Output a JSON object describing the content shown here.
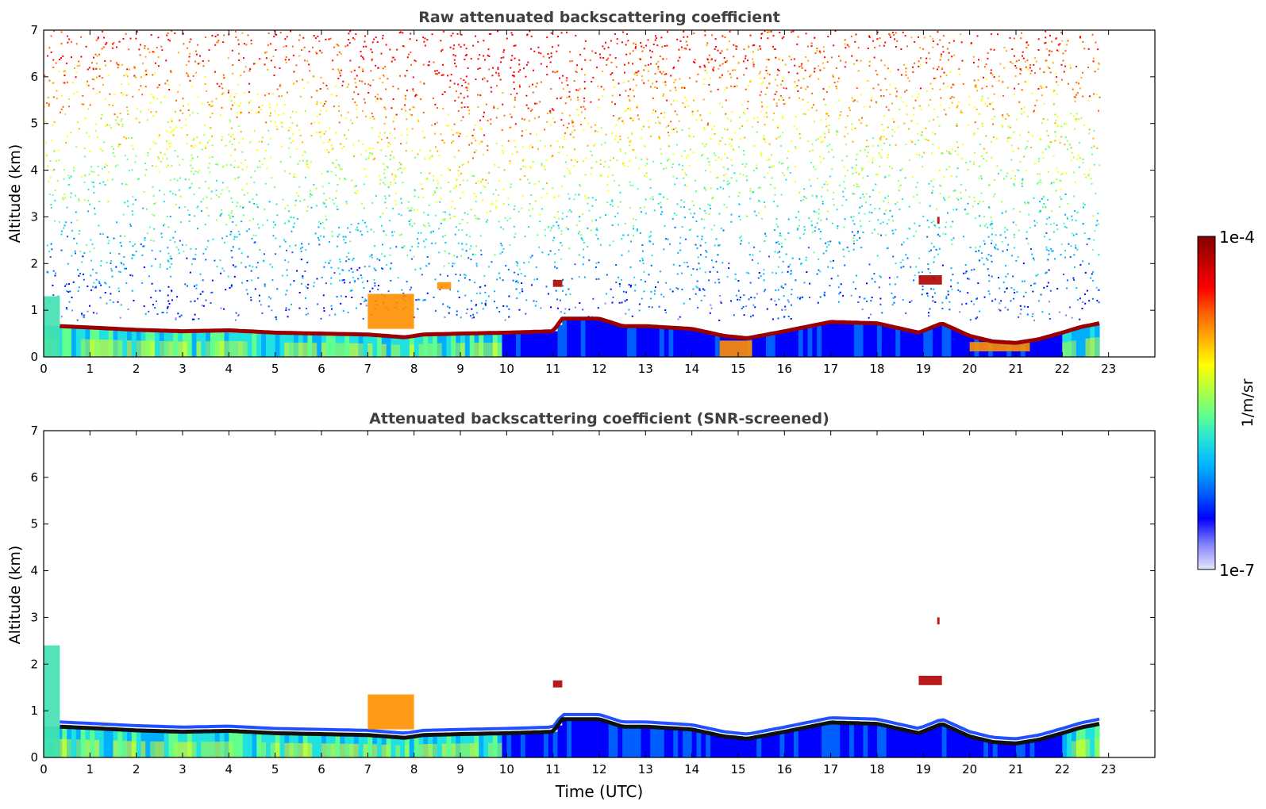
{
  "chart_data": [
    {
      "type": "heatmap",
      "title": "Raw attenuated backscattering coefficient",
      "xlabel": "",
      "ylabel": "Altitude (km)",
      "xlim": [
        0,
        24
      ],
      "ylim": [
        0,
        7
      ],
      "xticks": [
        "0",
        "1",
        "2",
        "3",
        "4",
        "5",
        "6",
        "7",
        "8",
        "9",
        "10",
        "11",
        "12",
        "13",
        "14",
        "15",
        "16",
        "17",
        "18",
        "19",
        "20",
        "21",
        "22",
        "23"
      ],
      "yticks": [
        "0",
        "1",
        "2",
        "3",
        "4",
        "5",
        "6",
        "7"
      ],
      "data_end_time": 22.8,
      "screened": false,
      "cloud_layer": {
        "x": [
          0.35,
          1,
          2,
          3,
          4,
          5,
          6,
          7,
          7.8,
          8.2,
          9,
          10,
          11,
          11.2,
          12,
          12.5,
          13,
          14,
          14.7,
          15.2,
          16,
          17,
          18,
          18.9,
          19.4,
          20,
          20.5,
          21,
          21.5,
          22,
          22.4,
          22.8
        ],
        "y": [
          0.66,
          0.63,
          0.58,
          0.55,
          0.57,
          0.52,
          0.5,
          0.48,
          0.42,
          0.48,
          0.5,
          0.52,
          0.55,
          0.82,
          0.82,
          0.66,
          0.66,
          0.6,
          0.45,
          0.4,
          0.55,
          0.75,
          0.72,
          0.52,
          0.72,
          0.45,
          0.33,
          0.3,
          0.38,
          0.52,
          0.64,
          0.72
        ]
      },
      "aerosol_patches": [
        {
          "x": [
            7.0,
            8.0
          ],
          "y": [
            0.6,
            1.35
          ],
          "level": "high"
        },
        {
          "x": [
            8.5,
            8.8
          ],
          "y": [
            1.45,
            1.6
          ],
          "level": "high"
        },
        {
          "x": [
            11.0,
            11.2
          ],
          "y": [
            1.5,
            1.65
          ],
          "level": "max"
        },
        {
          "x": [
            18.9,
            19.4
          ],
          "y": [
            1.55,
            1.75
          ],
          "level": "max"
        },
        {
          "x": [
            19.3,
            19.35
          ],
          "y": [
            2.85,
            3.0
          ],
          "level": "max"
        },
        {
          "x": [
            14.6,
            15.3
          ],
          "y": [
            0.0,
            0.35
          ],
          "level": "high"
        },
        {
          "x": [
            20.0,
            21.3
          ],
          "y": [
            0.12,
            0.32
          ],
          "level": "high"
        },
        {
          "x": [
            0.0,
            0.35
          ],
          "y": [
            0.0,
            1.3
          ],
          "level": "mid"
        }
      ]
    },
    {
      "type": "heatmap",
      "title": "Attenuated backscattering coefficient (SNR-screened)",
      "xlabel": "Time (UTC)",
      "ylabel": "Altitude (km)",
      "xlim": [
        0,
        24
      ],
      "ylim": [
        0,
        7
      ],
      "xticks": [
        "0",
        "1",
        "2",
        "3",
        "4",
        "5",
        "6",
        "7",
        "8",
        "9",
        "10",
        "11",
        "12",
        "13",
        "14",
        "15",
        "16",
        "17",
        "18",
        "19",
        "20",
        "21",
        "22",
        "23"
      ],
      "yticks": [
        "0",
        "1",
        "2",
        "3",
        "4",
        "5",
        "6",
        "7"
      ],
      "data_end_time": 22.8,
      "screened": true,
      "cloud_layer": {
        "x": [
          0.35,
          1,
          2,
          3,
          4,
          5,
          6,
          7,
          7.8,
          8.2,
          9,
          10,
          11,
          11.2,
          12,
          12.5,
          13,
          14,
          14.7,
          15.2,
          16,
          17,
          18,
          18.9,
          19.4,
          20,
          20.5,
          21,
          21.5,
          22,
          22.4,
          22.8
        ],
        "y": [
          0.66,
          0.63,
          0.58,
          0.55,
          0.57,
          0.52,
          0.5,
          0.48,
          0.42,
          0.48,
          0.5,
          0.52,
          0.55,
          0.82,
          0.82,
          0.66,
          0.66,
          0.6,
          0.45,
          0.4,
          0.55,
          0.75,
          0.72,
          0.52,
          0.72,
          0.45,
          0.33,
          0.3,
          0.38,
          0.52,
          0.64,
          0.72
        ]
      },
      "aerosol_patches": [
        {
          "x": [
            7.0,
            8.0
          ],
          "y": [
            0.6,
            1.35
          ],
          "level": "high"
        },
        {
          "x": [
            11.0,
            11.2
          ],
          "y": [
            1.5,
            1.65
          ],
          "level": "max"
        },
        {
          "x": [
            18.9,
            19.4
          ],
          "y": [
            1.55,
            1.75
          ],
          "level": "max"
        },
        {
          "x": [
            19.3,
            19.35
          ],
          "y": [
            2.85,
            3.0
          ],
          "level": "max"
        },
        {
          "x": [
            0.0,
            0.35
          ],
          "y": [
            0.0,
            2.4
          ],
          "level": "mid"
        }
      ]
    }
  ],
  "colorbar": {
    "min_label": "1e-7",
    "max_label": "1e-4",
    "unit_label": "1/m/sr",
    "colors": [
      "#e6e6fa",
      "#8080ff",
      "#0000ff",
      "#0060ff",
      "#00b0ff",
      "#20e0e0",
      "#60ff90",
      "#b0ff40",
      "#ffff00",
      "#ffb000",
      "#ff6000",
      "#ff0000",
      "#c00000",
      "#800000"
    ]
  }
}
